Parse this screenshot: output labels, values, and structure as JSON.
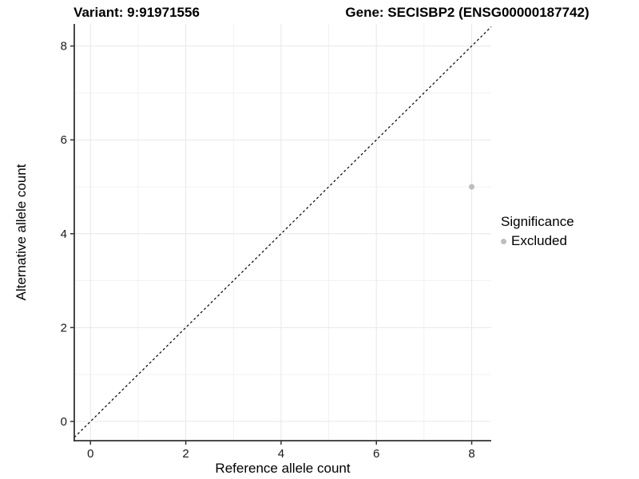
{
  "chart_data": {
    "type": "scatter",
    "titles": {
      "variant": "Variant: 9:91971556",
      "gene": "Gene: SECISBP2 (ENSG00000187742)"
    },
    "xlabel": "Reference allele count",
    "ylabel": "Alternative allele count",
    "xlim": [
      -0.34,
      8.41
    ],
    "ylim": [
      -0.41,
      8.47
    ],
    "xticks": [
      0,
      2,
      4,
      6,
      8
    ],
    "yticks": [
      0,
      2,
      4,
      6,
      8
    ],
    "xticks_minor": [
      1,
      3,
      5,
      7
    ],
    "yticks_minor": [
      1,
      3,
      5,
      7
    ],
    "grid": "major+minor",
    "identity_line": {
      "equation": "y = x",
      "style": "dashed",
      "color": "#000000"
    },
    "series": [
      {
        "name": "Excluded",
        "color": "#bdbdbd",
        "points": [
          {
            "x": 8,
            "y": 5
          }
        ]
      }
    ],
    "legend": {
      "title": "Significance",
      "position": "right",
      "entries": [
        {
          "label": "Excluded",
          "color": "#bdbdbd"
        }
      ]
    }
  },
  "colors": {
    "background": "#ffffff",
    "grid_major": "#e7e7e7",
    "grid_minor": "#f2f2f2",
    "axis": "#333333",
    "tick_text": "#1a1a1a",
    "point": "#bdbdbd"
  }
}
